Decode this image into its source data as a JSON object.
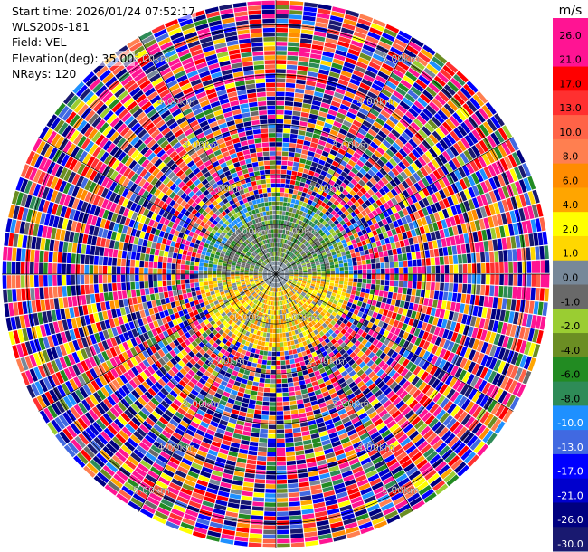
{
  "info": {
    "start_time": "Start time: 2026/01/24 07:52:17",
    "instrument": "WLS200s-181",
    "field": "Field: VEL",
    "elevation": "Elevation(deg): 35.00",
    "nrays": "NRays: 120"
  },
  "chart_data": {
    "type": "heatmap",
    "projection": "polar-ppi",
    "field": "VEL",
    "n_rays": 120,
    "elevation_deg": 35.0,
    "range_rings": [
      {
        "km": 1,
        "label": "1.00km"
      },
      {
        "km": 2,
        "label": "2.00km"
      },
      {
        "km": 3,
        "label": "3.00km"
      },
      {
        "km": 4,
        "label": "4.00km"
      },
      {
        "km": 5,
        "label": "5.00km"
      }
    ],
    "max_range_km": 5.5,
    "spoke_directions_deg": [
      0,
      30,
      60,
      90,
      120,
      150,
      180,
      210,
      240,
      270,
      300,
      330
    ],
    "colorbar": {
      "unit": "m/s",
      "min": -30.0,
      "max": 30.0,
      "tick_labels": [
        "26.0",
        "21.0",
        "17.0",
        "13.0",
        "10.0",
        "8.0",
        "6.0",
        "4.0",
        "2.0",
        "1.0",
        "0.0",
        "-1.0",
        "-2.0",
        "-4.0",
        "-6.0",
        "-8.0",
        "-10.0",
        "-13.0",
        "-17.0",
        "-21.0",
        "-26.0",
        "-30.0"
      ],
      "colors": [
        "#ff1493",
        "#ff1493",
        "#ff0000",
        "#ff3030",
        "#ff6347",
        "#ff7f50",
        "#ff8c00",
        "#ffa500",
        "#ffff00",
        "#ffd700",
        "#778899",
        "#696969",
        "#9acd32",
        "#6b8e23",
        "#228b22",
        "#2e8b57",
        "#1e90ff",
        "#4169e1",
        "#0000ff",
        "#0000cd",
        "#000080",
        "#191970"
      ]
    },
    "structure_notes": "Coherent wind signal within about 1.5 km: green/grey on the north half, yellow/orange/gold on the south half; noisy multicolour returns beyond."
  }
}
